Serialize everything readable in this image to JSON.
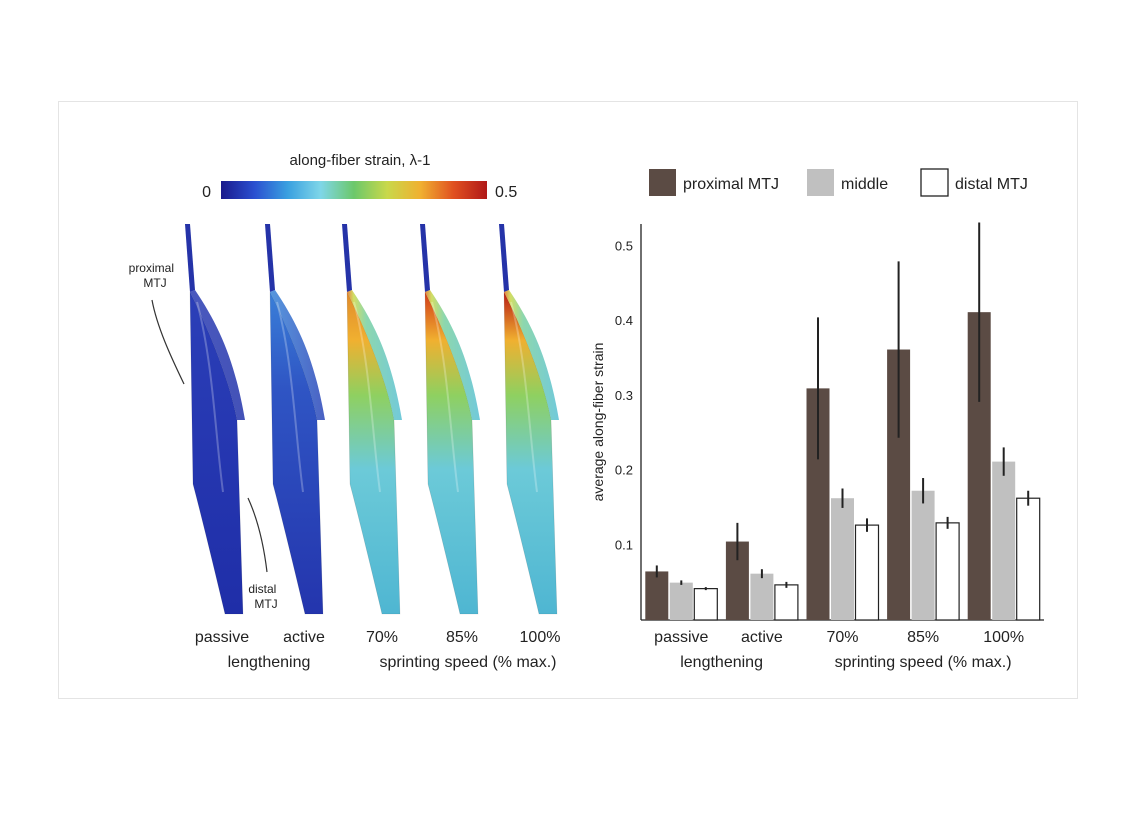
{
  "colorbar": {
    "title": "along-fiber strain, λ-1",
    "min_label": "0",
    "max_label": "0.5",
    "colormap": [
      "#1a1a8c",
      "#2a4fd0",
      "#3aa0e0",
      "#7fd6e8",
      "#6cc86a",
      "#c9d84a",
      "#f0b030",
      "#e05020",
      "#b01818"
    ]
  },
  "muscle_models": {
    "annotations": {
      "proximal": "proximal\nMTJ",
      "distal": "distal\nMTJ"
    },
    "conditions": [
      {
        "label": "passive",
        "strain_level": 0.0
      },
      {
        "label": "active",
        "strain_level": 0.1
      },
      {
        "label": "70%",
        "strain_level": 0.6
      },
      {
        "label": "85%",
        "strain_level": 0.8
      },
      {
        "label": "100%",
        "strain_level": 1.0
      }
    ],
    "group_labels": [
      "lengthening",
      "sprinting speed (% max.)"
    ]
  },
  "chart_data": {
    "type": "bar",
    "title": "",
    "ylabel": "average along-fiber strain",
    "ylim": [
      0,
      0.53
    ],
    "yticks": [
      0.1,
      0.2,
      0.3,
      0.4,
      0.5
    ],
    "ytick_labels": [
      "0.1",
      "0.2",
      "0.3",
      "0.4",
      "0.5"
    ],
    "categories": [
      "passive",
      "active",
      "70%",
      "85%",
      "100%"
    ],
    "group_labels": [
      "lengthening",
      "sprinting speed (% max.)"
    ],
    "series": [
      {
        "name": "proximal MTJ",
        "color": "#5b4b44",
        "values": [
          0.065,
          0.105,
          0.31,
          0.362,
          0.412
        ],
        "errors": [
          0.008,
          0.025,
          0.095,
          0.118,
          0.12
        ]
      },
      {
        "name": "middle",
        "color": "#c0c0c0",
        "values": [
          0.05,
          0.062,
          0.163,
          0.173,
          0.212
        ],
        "errors": [
          0.003,
          0.006,
          0.013,
          0.017,
          0.019
        ]
      },
      {
        "name": "distal MTJ",
        "color": "#ffffff",
        "values": [
          0.042,
          0.047,
          0.127,
          0.13,
          0.163
        ],
        "errors": [
          0.002,
          0.004,
          0.009,
          0.008,
          0.01
        ]
      }
    ]
  }
}
